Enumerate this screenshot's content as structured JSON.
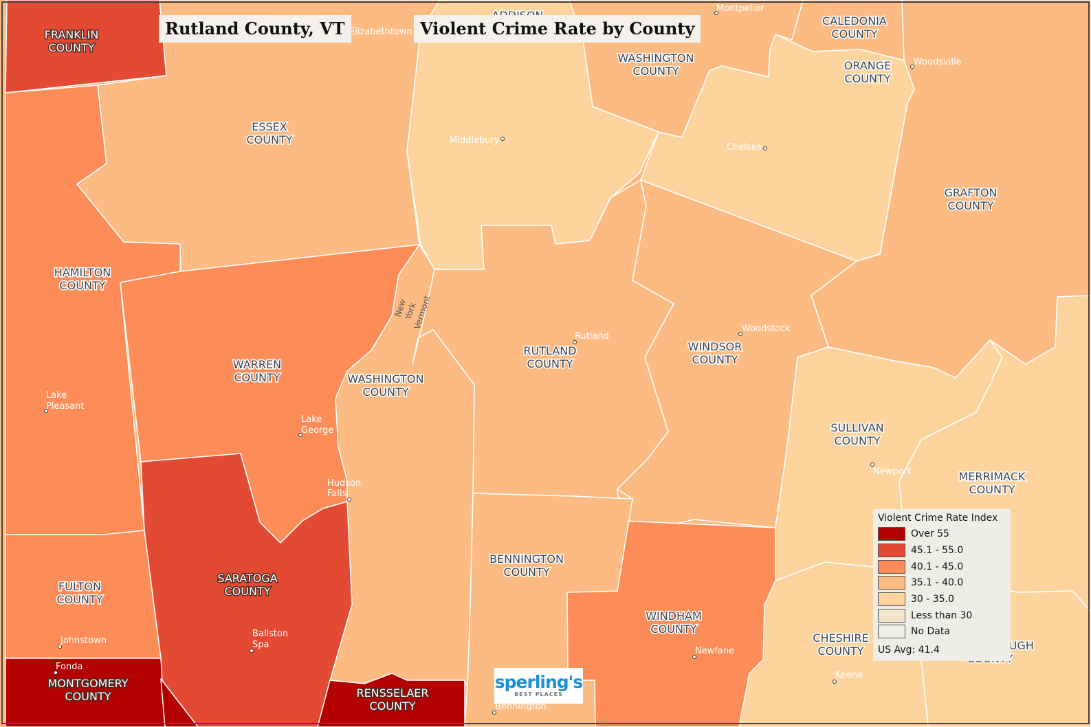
{
  "titles": {
    "place": "Rutland County, VT",
    "map": "Violent Crime Rate by County"
  },
  "colors": {
    "over55": "#b30000",
    "c45_55": "#e34a33",
    "c40_45": "#fc8d59",
    "c35_40": "#fdbb84",
    "c30_35": "#fdd49e",
    "lt30": "#f3e6cc",
    "nodata": "#efeee6",
    "border": "#ffffff"
  },
  "counties": {
    "franklin": "FRANKLIN COUNTY",
    "essex": "ESSEX COUNTY",
    "addison": "ADDISON",
    "washington_vt": "WASHINGTON COUNTY",
    "caledonia": "CALEDONIA COUNTY",
    "orange": "ORANGE COUNTY",
    "grafton": "GRAFTON COUNTY",
    "hamilton": "HAMILTON COUNTY",
    "warren": "WARREN COUNTY",
    "washington_ny": "WASHINGTON COUNTY",
    "rutland": "RUTLAND COUNTY",
    "windsor": "WINDSOR COUNTY",
    "sullivan": "SULLIVAN COUNTY",
    "merrimack": "MERRIMACK COUNTY",
    "fulton": "FULTON COUNTY",
    "saratoga": "SARATOGA COUNTY",
    "bennington": "BENNINGTON COUNTY",
    "windham": "WINDHAM COUNTY",
    "cheshire": "CHESHIRE COUNTY",
    "hillsborough": "HILLSBOROUGH COUNTY",
    "montgomery": "MONTGOMERY COUNTY",
    "rensselaer": "RENSSELAER COUNTY"
  },
  "cities": {
    "montpelier": "Montpelier",
    "elizabethtown": "Elizabethtown",
    "woodsville": "Woodsville",
    "middlebury": "Middlebury",
    "chelsea": "Chelsea",
    "rutland": "Rutland",
    "woodstock": "Woodstock",
    "lake_pleasant": [
      "Lake",
      "Pleasant"
    ],
    "lake_george": [
      "Lake",
      "George"
    ],
    "hudson_falls": [
      "Hudson",
      "Falls"
    ],
    "newport": "Newport",
    "johnstown": "Johnstown",
    "ballston_spa": [
      "Ballston",
      "Spa"
    ],
    "newfane": "Newfane",
    "keene": "Keene",
    "fonda": "Fonda",
    "bennington": "Bennington"
  },
  "state_labels": {
    "new_york": [
      "New",
      "York"
    ],
    "vermont": "Vermont"
  },
  "legend": {
    "title": "Violent Crime Rate Index",
    "items": [
      {
        "label": "Over 55",
        "color": "#b30000"
      },
      {
        "label": "45.1 - 55.0",
        "color": "#e34a33"
      },
      {
        "label": "40.1 - 45.0",
        "color": "#fc8d59"
      },
      {
        "label": "35.1 - 40.0",
        "color": "#fdbb84"
      },
      {
        "label": "30 - 35.0",
        "color": "#fdd49e"
      },
      {
        "label": "Less than 30",
        "color": "#f3e6cc"
      },
      {
        "label": "No Data",
        "color": "#efeee6"
      }
    ],
    "us_avg": "US Avg: 41.4"
  },
  "logo": {
    "brand": "sperling's",
    "sub": "BEST PLACES"
  }
}
